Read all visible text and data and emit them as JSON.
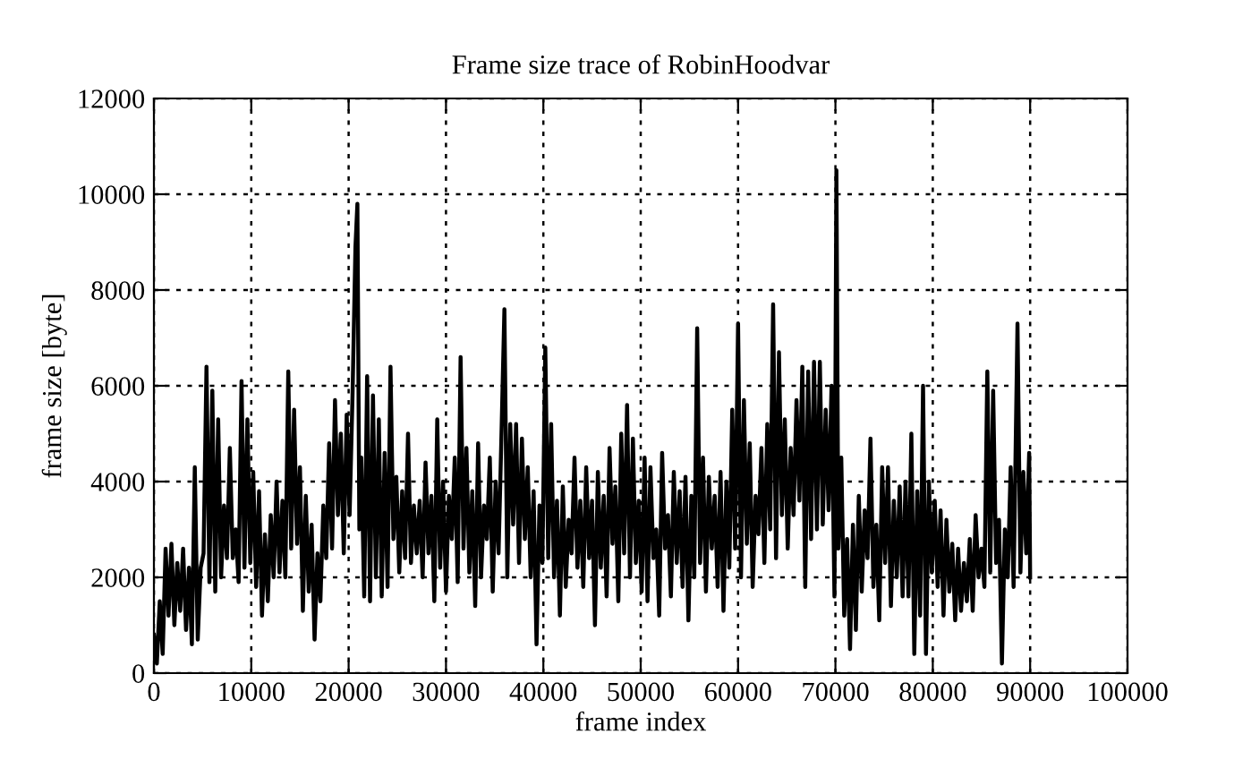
{
  "chart_data": {
    "type": "line",
    "title": "Frame size trace of RobinHoodvar",
    "xlabel": "frame index",
    "ylabel": "frame size [byte]",
    "xlim": [
      0,
      100000
    ],
    "xticks": [
      0,
      10000,
      20000,
      30000,
      40000,
      50000,
      60000,
      70000,
      80000,
      90000,
      100000
    ],
    "ylim": [
      0,
      12000
    ],
    "yticks": [
      0,
      2000,
      4000,
      6000,
      8000,
      10000,
      12000
    ],
    "grid": true,
    "marker": "none",
    "line_style": "solid",
    "series": [
      {
        "color": "#000000",
        "x": [
          0,
          300,
          600,
          900,
          1200,
          1500,
          1800,
          2100,
          2400,
          2700,
          3000,
          3300,
          3600,
          3900,
          4200,
          4500,
          4800,
          5100,
          5400,
          5700,
          6000,
          6300,
          6600,
          6900,
          7200,
          7500,
          7800,
          8100,
          8400,
          8700,
          9000,
          9300,
          9600,
          9900,
          10200,
          10500,
          10800,
          11100,
          11400,
          11700,
          12000,
          12300,
          12600,
          12900,
          13200,
          13500,
          13800,
          14100,
          14400,
          14700,
          15000,
          15300,
          15600,
          15900,
          16200,
          16500,
          16800,
          17100,
          17400,
          17700,
          18000,
          18300,
          18600,
          18900,
          19200,
          19500,
          19800,
          20100,
          20400,
          20700,
          20900,
          21100,
          21300,
          21600,
          21900,
          22200,
          22500,
          22800,
          23100,
          23400,
          23700,
          24000,
          24300,
          24600,
          24900,
          25200,
          25500,
          25800,
          26100,
          26400,
          26700,
          27000,
          27300,
          27600,
          27900,
          28200,
          28500,
          28800,
          29100,
          29400,
          29700,
          30000,
          30300,
          30600,
          30900,
          31200,
          31500,
          31800,
          32100,
          32400,
          32700,
          33000,
          33300,
          33600,
          33900,
          34200,
          34500,
          34800,
          35100,
          35400,
          35700,
          36000,
          36300,
          36600,
          36900,
          37200,
          37500,
          37800,
          38100,
          38400,
          38700,
          39000,
          39300,
          39600,
          39900,
          40200,
          40500,
          40800,
          41100,
          41400,
          41700,
          42000,
          42300,
          42600,
          42900,
          43200,
          43500,
          43800,
          44100,
          44400,
          44700,
          45000,
          45300,
          45600,
          45900,
          46200,
          46500,
          46800,
          47100,
          47400,
          47700,
          48000,
          48300,
          48600,
          48900,
          49200,
          49500,
          49800,
          50100,
          50400,
          50700,
          51000,
          51300,
          51600,
          51900,
          52200,
          52500,
          52800,
          53100,
          53400,
          53700,
          54000,
          54300,
          54600,
          54900,
          55200,
          55500,
          55800,
          56100,
          56400,
          56700,
          57000,
          57300,
          57600,
          57900,
          58200,
          58500,
          58800,
          59100,
          59400,
          59700,
          60000,
          60300,
          60600,
          60900,
          61200,
          61500,
          61800,
          62100,
          62400,
          62700,
          63000,
          63300,
          63600,
          63900,
          64200,
          64500,
          64800,
          65100,
          65400,
          65700,
          66000,
          66300,
          66600,
          66900,
          67200,
          67500,
          67800,
          68100,
          68400,
          68700,
          69000,
          69300,
          69600,
          69900,
          70100,
          70300,
          70600,
          70900,
          71200,
          71500,
          71800,
          72100,
          72400,
          72700,
          73000,
          73300,
          73600,
          73900,
          74200,
          74500,
          74800,
          75100,
          75400,
          75700,
          76000,
          76300,
          76600,
          76900,
          77200,
          77500,
          77800,
          78100,
          78400,
          78700,
          79000,
          79300,
          79600,
          79900,
          80200,
          80500,
          80800,
          81100,
          81400,
          81700,
          82000,
          82300,
          82600,
          82900,
          83200,
          83500,
          83800,
          84100,
          84400,
          84700,
          85000,
          85300,
          85600,
          85900,
          86200,
          86500,
          86800,
          87100,
          87400,
          87700,
          88000,
          88300,
          88700,
          89000,
          89300,
          89600,
          89900,
          90000
        ],
        "values": [
          800,
          200,
          1500,
          400,
          2600,
          1200,
          2700,
          1000,
          2300,
          1300,
          2600,
          900,
          2200,
          600,
          4300,
          700,
          2200,
          2500,
          6400,
          1900,
          5900,
          1700,
          5300,
          2000,
          3500,
          2400,
          4700,
          2400,
          3000,
          1900,
          6100,
          2200,
          5300,
          2300,
          4200,
          1800,
          3800,
          1200,
          2900,
          1500,
          3300,
          2000,
          4000,
          2100,
          3600,
          2000,
          6300,
          2600,
          5500,
          2700,
          4300,
          1300,
          3700,
          1700,
          3100,
          700,
          2500,
          1500,
          3500,
          2400,
          4800,
          2600,
          5700,
          3300,
          5000,
          2500,
          5400,
          3300,
          5800,
          8900,
          9800,
          3000,
          4500,
          1600,
          6200,
          1500,
          5800,
          2000,
          5300,
          1600,
          4600,
          1800,
          6400,
          2800,
          4100,
          2100,
          3800,
          2400,
          5000,
          2300,
          3500,
          2500,
          3600,
          2000,
          4400,
          2500,
          3700,
          1500,
          5300,
          2200,
          4000,
          1700,
          3700,
          2800,
          4500,
          1900,
          6600,
          2600,
          4700,
          2100,
          3800,
          1400,
          4800,
          2000,
          3500,
          2800,
          4500,
          1700,
          4000,
          2500,
          5000,
          7600,
          2000,
          5200,
          3100,
          5200,
          2300,
          4900,
          2800,
          4300,
          2000,
          3800,
          600,
          3500,
          2300,
          6800,
          2400,
          5200,
          2000,
          3600,
          1200,
          3900,
          1800,
          3200,
          2500,
          4500,
          2200,
          3600,
          1800,
          4300,
          2400,
          3600,
          1000,
          4200,
          2200,
          3700,
          1600,
          4700,
          2700,
          3900,
          1500,
          5000,
          2500,
          5600,
          2000,
          4900,
          2300,
          3600,
          1700,
          4500,
          1500,
          4300,
          2400,
          3000,
          1200,
          4600,
          2600,
          3300,
          1600,
          4200,
          2300,
          3800,
          1800,
          4100,
          1100,
          3700,
          2000,
          7200,
          2300,
          4500,
          1700,
          4100,
          2600,
          3700,
          1800,
          4200,
          1300,
          4000,
          2200,
          5500,
          2600,
          7300,
          2000,
          5700,
          2700,
          4800,
          1800,
          3700,
          2900,
          4700,
          2300,
          5200,
          3000,
          7700,
          2400,
          6700,
          3300,
          5300,
          2600,
          4700,
          3300,
          5700,
          3600,
          6400,
          1800,
          6300,
          2800,
          6500,
          3000,
          6500,
          3100,
          5500,
          3400,
          6000,
          1600,
          10500,
          2600,
          4500,
          1200,
          2800,
          500,
          3100,
          900,
          3700,
          1700,
          3400,
          2400,
          4900,
          1800,
          3100,
          1100,
          4300,
          2300,
          4300,
          1400,
          3600,
          2000,
          3900,
          1600,
          4000,
          1600,
          5000,
          400,
          3800,
          1200,
          6000,
          400,
          4000,
          2100,
          3600,
          1800,
          3400,
          1200,
          3200,
          1700,
          2700,
          1100,
          2600,
          1300,
          2300,
          1500,
          2800,
          1300,
          3300,
          2000,
          2600,
          1800,
          6300,
          2100,
          5900,
          2300,
          3200,
          200,
          3000,
          2000,
          4300,
          1800,
          7300,
          2100,
          4200,
          2500,
          4600,
          2000
        ]
      }
    ]
  }
}
